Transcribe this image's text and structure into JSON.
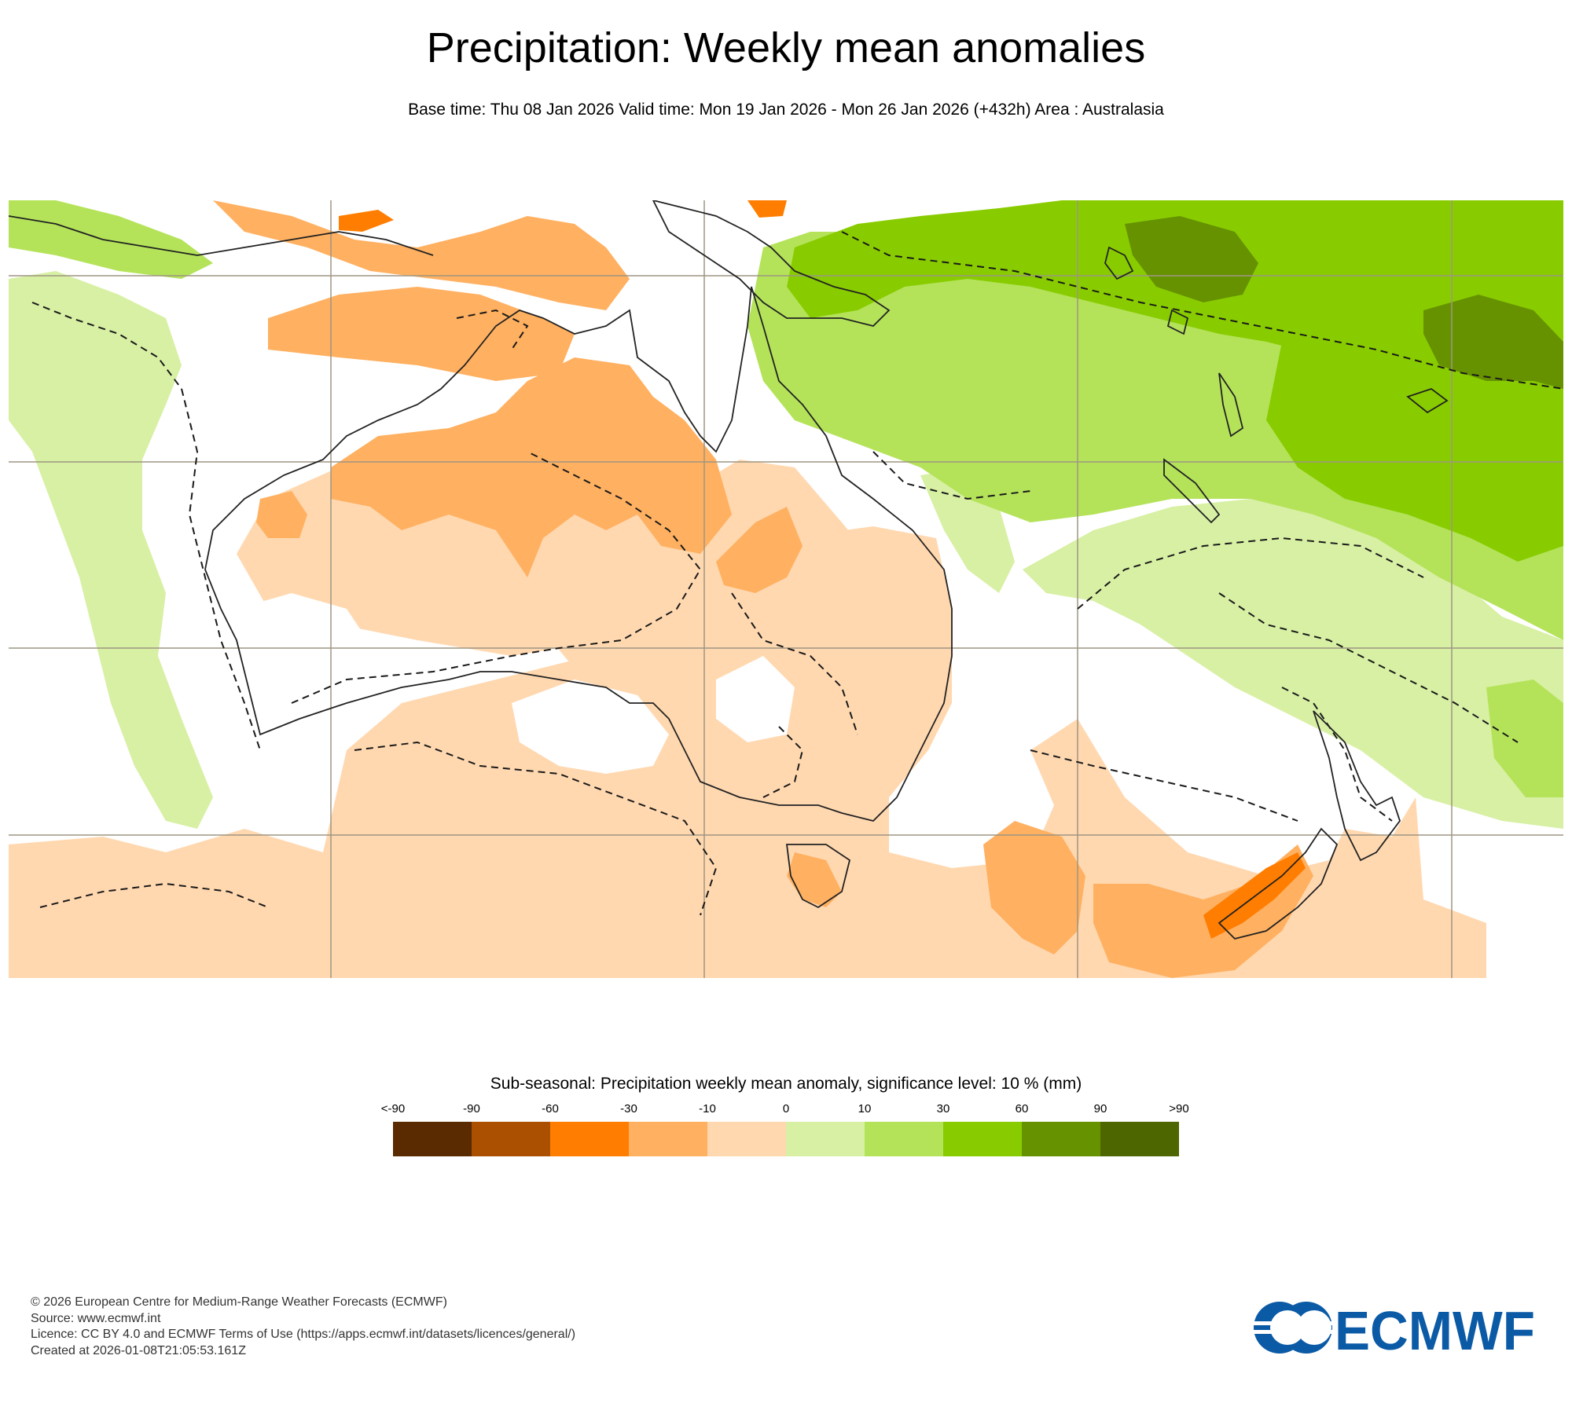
{
  "header": {
    "title": "Precipitation: Weekly mean anomalies",
    "subtitle": "Base time: Thu 08 Jan 2026 Valid time: Mon 19 Jan 2026 - Mon 26 Jan 2026 (+432h) Area : Australasia"
  },
  "map": {
    "region": "Australasia",
    "colors": {
      "land_outline": "#222222",
      "grid": "#9e9682",
      "significance_contour": "#1a1a1a"
    }
  },
  "legend": {
    "title": "Sub-seasonal: Precipitation weekly mean anomaly, significance level: 10 % (mm)",
    "labels": [
      "<-90",
      "-90",
      "-60",
      "-30",
      "-10",
      "0",
      "10",
      "30",
      "60",
      "90",
      ">90"
    ],
    "colors": [
      "#5a2a00",
      "#aa5000",
      "#ff7d00",
      "#ffb060",
      "#ffd8b0",
      "#d8f0a4",
      "#b4e35a",
      "#88cc00",
      "#669200",
      "#4e6600"
    ]
  },
  "footer": {
    "copyright": "© 2026 European Centre for Medium-Range Weather Forecasts (ECMWF)",
    "source": "Source: www.ecmwf.int",
    "licence": "Licence: CC BY 4.0 and ECMWF Terms of Use (https://apps.ecmwf.int/datasets/licences/general/)",
    "created": "Created at 2026-01-08T21:05:53.161Z"
  },
  "logo": {
    "text": "ECMWF",
    "color": "#0b5aa6"
  }
}
